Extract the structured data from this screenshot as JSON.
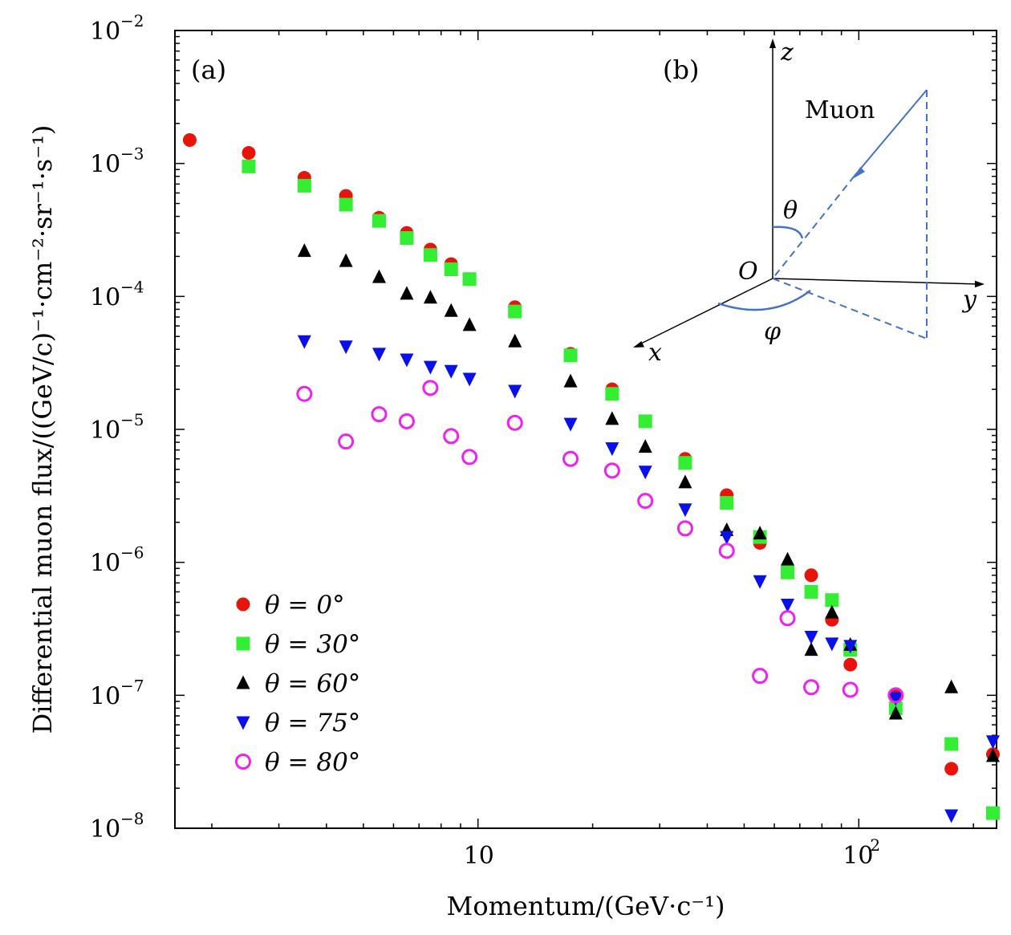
{
  "chart_data": {
    "type": "scatter",
    "xlabel": "Momentum/(GeV·c⁻¹)",
    "ylabel": "Differential muon flux/((GeV/c)⁻¹·cm⁻²·sr⁻¹·s⁻¹)",
    "xscale": "log",
    "yscale": "log",
    "xlim": [
      1.6,
      230
    ],
    "ylim": [
      1e-08,
      0.01
    ],
    "x_tick_labels": [
      {
        "value": 10,
        "base": "10",
        "exp": ""
      },
      {
        "value": 100,
        "base": "10",
        "exp": "2"
      }
    ],
    "y_tick_labels": [
      {
        "value": 0.01,
        "base": "10",
        "exp": "−2"
      },
      {
        "value": 0.001,
        "base": "10",
        "exp": "−3"
      },
      {
        "value": 0.0001,
        "base": "10",
        "exp": "−4"
      },
      {
        "value": 1e-05,
        "base": "10",
        "exp": "−5"
      },
      {
        "value": 1e-06,
        "base": "10",
        "exp": "−6"
      },
      {
        "value": 1e-07,
        "base": "10",
        "exp": "−7"
      },
      {
        "value": 1e-08,
        "base": "10",
        "exp": "−8"
      }
    ],
    "panel_labels": [
      "(a)",
      "(b)"
    ],
    "legend_position": "bottom-left",
    "series": [
      {
        "name": "θ = 0°",
        "marker": "circle",
        "color": "#e8140c",
        "points": [
          [
            1.75,
            0.0015
          ],
          [
            2.5,
            0.0012
          ],
          [
            3.5,
            0.00078
          ],
          [
            4.5,
            0.00057
          ],
          [
            5.5,
            0.00039
          ],
          [
            6.5,
            0.0003
          ],
          [
            7.5,
            0.000225
          ],
          [
            8.5,
            0.000175
          ],
          [
            12.5,
            8.3e-05
          ],
          [
            17.5,
            3.7e-05
          ],
          [
            22.5,
            2e-05
          ],
          [
            35,
            6e-06
          ],
          [
            45,
            3.2e-06
          ],
          [
            55,
            1.4e-06
          ],
          [
            75,
            8e-07
          ],
          [
            85,
            3.7e-07
          ],
          [
            95,
            1.7e-07
          ],
          [
            125,
            1e-07
          ],
          [
            175,
            2.8e-08
          ],
          [
            225,
            3.6e-08
          ]
        ]
      },
      {
        "name": "θ = 30°",
        "marker": "square",
        "color": "#33ee33",
        "points": [
          [
            2.5,
            0.00095
          ],
          [
            3.5,
            0.00068
          ],
          [
            4.5,
            0.00049
          ],
          [
            5.5,
            0.00037
          ],
          [
            6.5,
            0.000275
          ],
          [
            7.5,
            0.000205
          ],
          [
            8.5,
            0.00016
          ],
          [
            9.5,
            0.000135
          ],
          [
            12.5,
            7.7e-05
          ],
          [
            17.5,
            3.6e-05
          ],
          [
            22.5,
            1.85e-05
          ],
          [
            27.5,
            1.15e-05
          ],
          [
            35,
            5.6e-06
          ],
          [
            45,
            2.8e-06
          ],
          [
            55,
            1.55e-06
          ],
          [
            65,
            8.4e-07
          ],
          [
            75,
            6e-07
          ],
          [
            85,
            5.2e-07
          ],
          [
            95,
            2.2e-07
          ],
          [
            125,
            8e-08
          ],
          [
            175,
            4.3e-08
          ],
          [
            225,
            1.3e-08
          ]
        ]
      },
      {
        "name": "θ = 60°",
        "marker": "triangle-up",
        "color": "#000000",
        "points": [
          [
            3.5,
            0.00022
          ],
          [
            4.5,
            0.000185
          ],
          [
            5.5,
            0.00014
          ],
          [
            6.5,
            0.000105
          ],
          [
            7.5,
            9.8e-05
          ],
          [
            8.5,
            7.8e-05
          ],
          [
            9.5,
            6.1e-05
          ],
          [
            12.5,
            4.6e-05
          ],
          [
            17.5,
            2.3e-05
          ],
          [
            22.5,
            1.2e-05
          ],
          [
            27.5,
            7.4e-06
          ],
          [
            35,
            4e-06
          ],
          [
            45,
            1.75e-06
          ],
          [
            55,
            1.65e-06
          ],
          [
            65,
            1.05e-06
          ],
          [
            75,
            2.2e-07
          ],
          [
            85,
            4.2e-07
          ],
          [
            95,
            2.4e-07
          ],
          [
            125,
            7.3e-08
          ],
          [
            175,
            1.15e-07
          ],
          [
            225,
            3.5e-08
          ]
        ]
      },
      {
        "name": "θ = 75°",
        "marker": "triangle-down",
        "color": "#0a10e8",
        "points": [
          [
            3.5,
            4.6e-05
          ],
          [
            4.5,
            4.2e-05
          ],
          [
            5.5,
            3.7e-05
          ],
          [
            6.5,
            3.35e-05
          ],
          [
            7.5,
            2.95e-05
          ],
          [
            8.5,
            2.75e-05
          ],
          [
            9.5,
            2.4e-05
          ],
          [
            12.5,
            1.95e-05
          ],
          [
            17.5,
            1.1e-05
          ],
          [
            22.5,
            7.2e-06
          ],
          [
            27.5,
            4.8e-06
          ],
          [
            35,
            2.5e-06
          ],
          [
            45,
            1.55e-06
          ],
          [
            55,
            7.2e-07
          ],
          [
            65,
            4.8e-07
          ],
          [
            75,
            2.75e-07
          ],
          [
            85,
            2.45e-07
          ],
          [
            95,
            2.35e-07
          ],
          [
            125,
            9.5e-08
          ],
          [
            175,
            1.25e-08
          ],
          [
            225,
            4.5e-08
          ]
        ]
      },
      {
        "name": "θ = 80°",
        "marker": "circle-open",
        "color": "#ee22ee",
        "points": [
          [
            3.5,
            1.85e-05
          ],
          [
            4.5,
            8.1e-06
          ],
          [
            5.5,
            1.3e-05
          ],
          [
            6.5,
            1.15e-05
          ],
          [
            7.5,
            2.05e-05
          ],
          [
            8.5,
            8.9e-06
          ],
          [
            9.5,
            6.2e-06
          ],
          [
            12.5,
            1.12e-05
          ],
          [
            17.5,
            6e-06
          ],
          [
            22.5,
            4.9e-06
          ],
          [
            27.5,
            2.9e-06
          ],
          [
            35,
            1.8e-06
          ],
          [
            45,
            1.22e-06
          ],
          [
            55,
            1.4e-07
          ],
          [
            65,
            3.8e-07
          ],
          [
            75,
            1.15e-07
          ],
          [
            95,
            1.1e-07
          ],
          [
            125,
            1e-07
          ]
        ]
      }
    ]
  },
  "inset": {
    "muon_label": "Muon",
    "origin_label": "O",
    "x_axis_label": "x",
    "y_axis_label": "y",
    "z_axis_label": "z",
    "theta_label": "θ",
    "phi_label": "φ",
    "line_color": "#4472c4"
  }
}
